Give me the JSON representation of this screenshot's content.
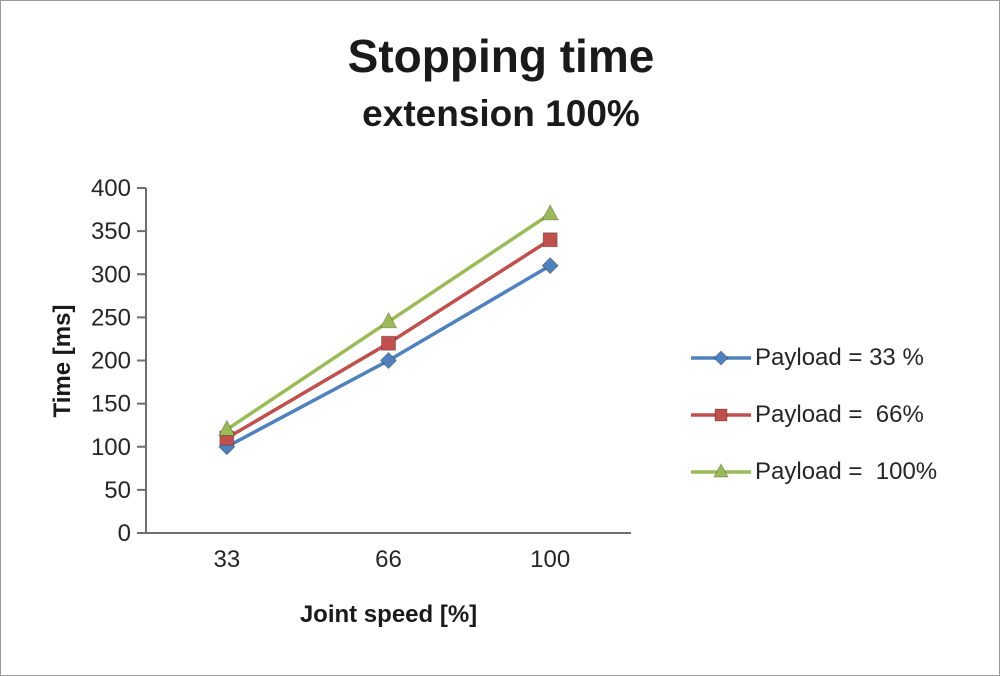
{
  "chart_data": {
    "type": "line",
    "title": "Stopping time",
    "subtitle": "extension 100%",
    "xlabel": "Joint speed [%]",
    "ylabel": "Time [ms]",
    "categories": [
      "33",
      "66",
      "100"
    ],
    "ylim": [
      0,
      400
    ],
    "yticks": [
      0,
      50,
      100,
      150,
      200,
      250,
      300,
      350,
      400
    ],
    "grid": false,
    "legend_position": "right",
    "axis_color": "#6e6e6e",
    "tick_label_color": "#262626",
    "series": [
      {
        "name": "Payload = 33 %",
        "values": [
          100,
          200,
          310
        ],
        "color": "#4F81BD",
        "marker": "diamond"
      },
      {
        "name": "Payload =  66%",
        "values": [
          110,
          220,
          340
        ],
        "color": "#C0504D",
        "marker": "square"
      },
      {
        "name": "Payload =  100%",
        "values": [
          120,
          245,
          370
        ],
        "color": "#9BBB59",
        "marker": "triangle"
      }
    ]
  }
}
